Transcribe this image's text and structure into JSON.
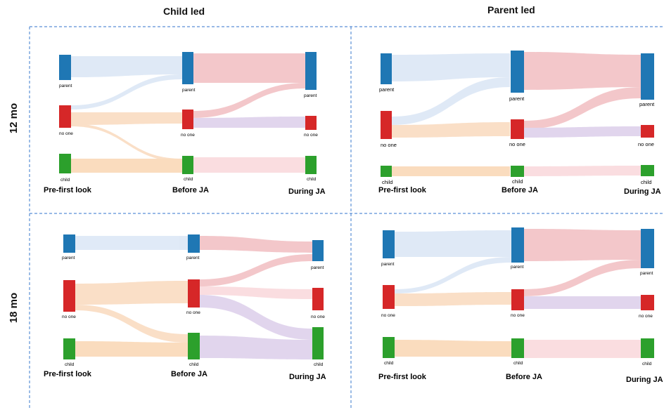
{
  "columns": [
    "Child led",
    "Parent led"
  ],
  "rows": [
    "12 mo",
    "18 mo"
  ],
  "stages": [
    "Pre-first look",
    "Before JA",
    "During JA"
  ],
  "node_labels": [
    "parent",
    "no one",
    "child"
  ],
  "colors": {
    "parent": "#1f77b4",
    "no_one": "#d62728",
    "child": "#2ca02c",
    "flow_parent": "#c6d8f0",
    "flow_noone": "#f6c59a",
    "flow_child": "#f7c08a",
    "flow_to_parent": "#ea9a9f",
    "flow_to_noone": "#c9b3e0",
    "flow_to_child": "#f7c3c8",
    "divider": "#5b8fd6"
  },
  "icons": [],
  "panels": [
    {
      "column": "Child led",
      "row": "12 mo",
      "flows": [
        {
          "from": "parent",
          "to": "parent",
          "stage": "Pre-first look → Before JA",
          "weight": 4
        },
        {
          "from": "no one",
          "to": "parent",
          "stage": "Pre-first look → Before JA",
          "weight": 1
        },
        {
          "from": "no one",
          "to": "no one",
          "stage": "Pre-first look → Before JA",
          "weight": 3
        },
        {
          "from": "child",
          "to": "child",
          "stage": "Pre-first look → Before JA",
          "weight": 4
        },
        {
          "from": "parent",
          "to": "parent",
          "stage": "Before JA → During JA",
          "weight": 8
        },
        {
          "from": "no one",
          "to": "parent",
          "stage": "Before JA → During JA",
          "weight": 3
        },
        {
          "from": "no one",
          "to": "no one",
          "stage": "Before JA → During JA",
          "weight": 3
        },
        {
          "from": "child",
          "to": "child",
          "stage": "Before JA → During JA",
          "weight": 4
        }
      ]
    },
    {
      "column": "Parent led",
      "row": "12 mo",
      "flows": [
        {
          "from": "parent",
          "to": "parent",
          "stage": "Pre-first look → Before JA",
          "weight": 5
        },
        {
          "from": "no one",
          "to": "parent",
          "stage": "Pre-first look → Before JA",
          "weight": 2
        },
        {
          "from": "no one",
          "to": "no one",
          "stage": "Pre-first look → Before JA",
          "weight": 3
        },
        {
          "from": "child",
          "to": "child",
          "stage": "Pre-first look → Before JA",
          "weight": 3
        },
        {
          "from": "parent",
          "to": "parent",
          "stage": "Before JA → During JA",
          "weight": 9
        },
        {
          "from": "no one",
          "to": "parent",
          "stage": "Before JA → During JA",
          "weight": 3
        },
        {
          "from": "no one",
          "to": "no one",
          "stage": "Before JA → During JA",
          "weight": 2
        },
        {
          "from": "child",
          "to": "child",
          "stage": "Before JA → During JA",
          "weight": 2
        }
      ]
    },
    {
      "column": "Child led",
      "row": "18 mo",
      "flows": [
        {
          "from": "parent",
          "to": "parent",
          "stage": "Pre-first look → Before JA",
          "weight": 4
        },
        {
          "from": "no one",
          "to": "no one",
          "stage": "Pre-first look → Before JA",
          "weight": 6
        },
        {
          "from": "no one",
          "to": "child",
          "stage": "Pre-first look → Before JA",
          "weight": 2
        },
        {
          "from": "child",
          "to": "child",
          "stage": "Pre-first look → Before JA",
          "weight": 5
        },
        {
          "from": "parent",
          "to": "parent",
          "stage": "Before JA → During JA",
          "weight": 3
        },
        {
          "from": "no one",
          "to": "parent",
          "stage": "Before JA → During JA",
          "weight": 2
        },
        {
          "from": "no one",
          "to": "no one",
          "stage": "Before JA → During JA",
          "weight": 2
        },
        {
          "from": "no one",
          "to": "child",
          "stage": "Before JA → During JA",
          "weight": 3
        },
        {
          "from": "child",
          "to": "child",
          "stage": "Before JA → During JA",
          "weight": 7
        }
      ]
    },
    {
      "column": "Parent led",
      "row": "18 mo",
      "flows": [
        {
          "from": "parent",
          "to": "parent",
          "stage": "Pre-first look → Before JA",
          "weight": 6
        },
        {
          "from": "no one",
          "to": "no one",
          "stage": "Pre-first look → Before JA",
          "weight": 3
        },
        {
          "from": "no one",
          "to": "parent",
          "stage": "Pre-first look → Before JA",
          "weight": 1
        },
        {
          "from": "child",
          "to": "child",
          "stage": "Pre-first look → Before JA",
          "weight": 4
        },
        {
          "from": "parent",
          "to": "parent",
          "stage": "Before JA → During JA",
          "weight": 9
        },
        {
          "from": "no one",
          "to": "parent",
          "stage": "Before JA → During JA",
          "weight": 2
        },
        {
          "from": "no one",
          "to": "no one",
          "stage": "Before JA → During JA",
          "weight": 3
        },
        {
          "from": "child",
          "to": "child",
          "stage": "Before JA → During JA",
          "weight": 4
        }
      ]
    }
  ]
}
